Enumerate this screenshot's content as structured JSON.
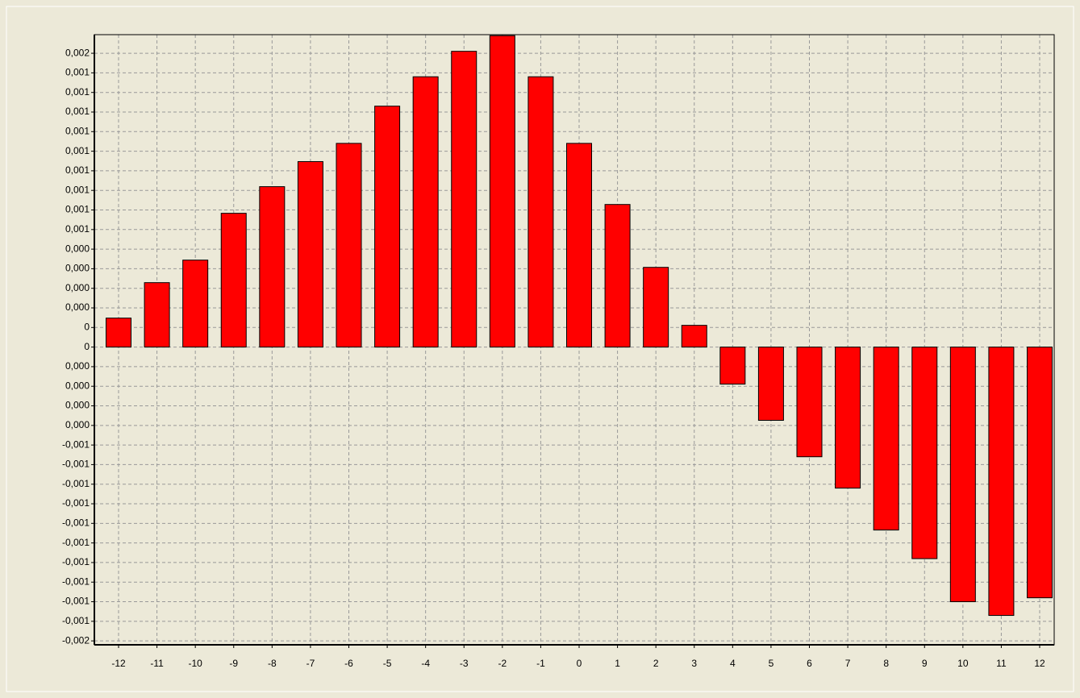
{
  "chart_data": {
    "type": "bar",
    "categories": [
      "-12",
      "-11",
      "-10",
      "-9",
      "-8",
      "-7",
      "-6",
      "-5",
      "-4",
      "-3",
      "-2",
      "-1",
      "0",
      "1",
      "2",
      "3",
      "4",
      "5",
      "6",
      "7",
      "8",
      "9",
      "10",
      "11",
      "12"
    ],
    "values": [
      0.000148,
      0.000329,
      0.000444,
      0.000683,
      0.000819,
      0.000947,
      0.00104,
      0.00123,
      0.00138,
      0.00151,
      0.00159,
      0.00138,
      0.00104,
      0.000728,
      0.000407,
      0.000111,
      -0.000189,
      -0.000374,
      -0.00056,
      -0.00072,
      -0.000934,
      -0.00108,
      -0.0013,
      -0.00137,
      -0.00128
    ],
    "color": "#ff0000",
    "ylim": [
      -0.00152,
      0.001595
    ],
    "yticks": [
      {
        "value": -0.0015,
        "label": "-0,002"
      },
      {
        "value": -0.0014,
        "label": "-0,001"
      },
      {
        "value": -0.0013,
        "label": "-0,001"
      },
      {
        "value": -0.0012,
        "label": "-0,001"
      },
      {
        "value": -0.0011,
        "label": "-0,001"
      },
      {
        "value": -0.001,
        "label": "-0,001"
      },
      {
        "value": -0.0009,
        "label": "-0,001"
      },
      {
        "value": -0.0008,
        "label": "-0,001"
      },
      {
        "value": -0.0007,
        "label": "-0,001"
      },
      {
        "value": -0.0006,
        "label": "-0,001"
      },
      {
        "value": -0.0005,
        "label": "-0,001"
      },
      {
        "value": -0.0004,
        "label": "0,000"
      },
      {
        "value": -0.0003,
        "label": "0,000"
      },
      {
        "value": -0.0002,
        "label": "0,000"
      },
      {
        "value": -0.0001,
        "label": "0,000"
      },
      0,
      {
        "value": 0.0001,
        "label": "0"
      },
      {
        "value": 0.0002,
        "label": "0,000"
      },
      {
        "value": 0.0003,
        "label": "0,000"
      },
      {
        "value": 0.0004,
        "label": "0,000"
      },
      {
        "value": 0.0005,
        "label": "0,000"
      },
      {
        "value": 0.0006,
        "label": "0,001"
      },
      {
        "value": 0.0007,
        "label": "0,001"
      },
      {
        "value": 0.0008,
        "label": "0,001"
      },
      {
        "value": 0.0009,
        "label": "0,001"
      },
      {
        "value": 0.001,
        "label": "0,001"
      },
      {
        "value": 0.0011,
        "label": "0,001"
      },
      {
        "value": 0.0012,
        "label": "0,001"
      },
      {
        "value": 0.0013,
        "label": "0,001"
      },
      {
        "value": 0.0014,
        "label": "0,001"
      },
      {
        "value": 0.0015,
        "label": "0,002"
      }
    ],
    "grid": true
  }
}
